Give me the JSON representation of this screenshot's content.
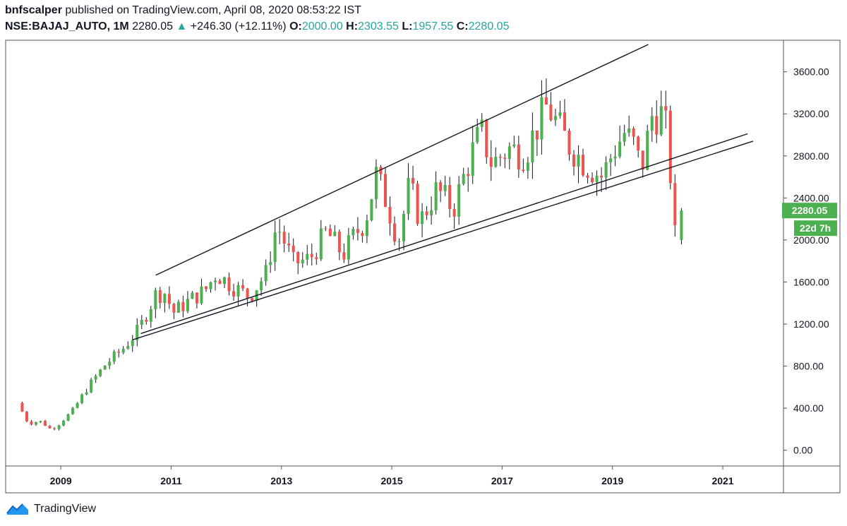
{
  "header": {
    "author": "bnfscalper",
    "published_text": "published on TradingView.com, April 08, 2020 08:53:22 IST",
    "symbol": "NSE:BAJAJ_AUTO, 1M",
    "last": "2280.05",
    "change": "+246.30 (+12.11%)",
    "open_label": "O:",
    "open": "2000.00",
    "high_label": "H:",
    "high": "2303.55",
    "low_label": "L:",
    "low": "1957.55",
    "close_label": "C:",
    "close": "2280.05"
  },
  "footer": {
    "brand": "TradingView",
    "logo_icon": "tradingview-logo-icon"
  },
  "colors": {
    "up": "#26a69a",
    "candle_up": "#4caf50",
    "candle_down": "#ef5350",
    "badge": "#4caf50",
    "axis": "#131722",
    "trendline": "#131722"
  },
  "chart_data": {
    "type": "candlestick",
    "title": "NSE:BAJAJ_AUTO, 1M",
    "ylim": [
      -150,
      3900
    ],
    "xlim": [
      2008.0,
      2022.1
    ],
    "y_ticks": [
      "3600.00",
      "3200.00",
      "2800.00",
      "2400.00",
      "2000.00",
      "1600.00",
      "1200.00",
      "800.00",
      "400.00",
      "0.00"
    ],
    "y_tick_values": [
      3600,
      3200,
      2800,
      2400,
      2000,
      1600,
      1200,
      800,
      400,
      0
    ],
    "x_ticks": [
      "2009",
      "2011",
      "2013",
      "2015",
      "2017",
      "2019",
      "2021"
    ],
    "x_tick_values": [
      2009,
      2011,
      2013,
      2015,
      2017,
      2019,
      2021
    ],
    "price_badge": "2280.05",
    "price_badge_value": 2280.05,
    "countdown_badge": "22d 7h",
    "anchors": [
      [
        2008.3,
        450
      ],
      [
        2008.5,
        250
      ],
      [
        2008.7,
        280
      ],
      [
        2008.9,
        200
      ],
      [
        2009.0,
        220
      ],
      [
        2009.3,
        380
      ],
      [
        2009.6,
        620
      ],
      [
        2009.9,
        820
      ],
      [
        2010.2,
        960
      ],
      [
        2010.5,
        1150
      ],
      [
        2010.8,
        1480
      ],
      [
        2011.0,
        1500
      ],
      [
        2011.1,
        1300
      ],
      [
        2011.4,
        1420
      ],
      [
        2011.7,
        1520
      ],
      [
        2011.9,
        1680
      ],
      [
        2012.2,
        1560
      ],
      [
        2012.5,
        1460
      ],
      [
        2012.8,
        1680
      ],
      [
        2013.0,
        2150
      ],
      [
        2013.3,
        1780
      ],
      [
        2013.6,
        1820
      ],
      [
        2013.9,
        2080
      ],
      [
        2014.2,
        1860
      ],
      [
        2014.4,
        2040
      ],
      [
        2014.6,
        2180
      ],
      [
        2014.8,
        2620
      ],
      [
        2015.0,
        2350
      ],
      [
        2015.2,
        1980
      ],
      [
        2015.4,
        2520
      ],
      [
        2015.6,
        2180
      ],
      [
        2015.9,
        2480
      ],
      [
        2016.2,
        2300
      ],
      [
        2016.5,
        2780
      ],
      [
        2016.7,
        3030
      ],
      [
        2016.9,
        2720
      ],
      [
        2017.2,
        2870
      ],
      [
        2017.5,
        2820
      ],
      [
        2017.7,
        3060
      ],
      [
        2017.9,
        3280
      ],
      [
        2018.1,
        3080
      ],
      [
        2018.3,
        2900
      ],
      [
        2018.6,
        2720
      ],
      [
        2018.9,
        2600
      ],
      [
        2019.1,
        2850
      ],
      [
        2019.3,
        3020
      ],
      [
        2019.5,
        2880
      ],
      [
        2019.6,
        2650
      ],
      [
        2019.8,
        3180
      ],
      [
        2020.0,
        3200
      ],
      [
        2020.1,
        2920
      ],
      [
        2020.2,
        2040
      ]
    ],
    "candles": [
      {
        "x": 2020.25,
        "o": 2000.0,
        "h": 2303.55,
        "l": 1957.55,
        "c": 2280.05
      }
    ],
    "trendlines": [
      {
        "name": "upper-channel-line",
        "from": [
          2010.72,
          1665
        ],
        "to": [
          2019.65,
          3860
        ]
      },
      {
        "name": "lower-channel-line-1",
        "from": [
          2010.45,
          1110
        ],
        "to": [
          2021.45,
          3010
        ]
      },
      {
        "name": "lower-channel-line-2",
        "from": [
          2010.3,
          1050
        ],
        "to": [
          2021.55,
          2940
        ]
      }
    ]
  }
}
